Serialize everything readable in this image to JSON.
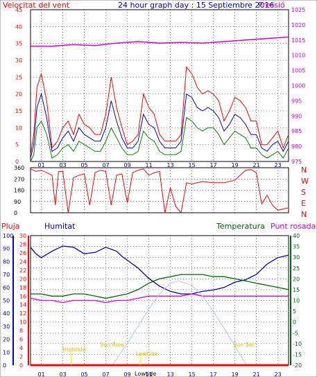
{
  "header": {
    "left": "Velocitat del vent",
    "center": "24 hour graph day : 15 Septiembre 2016",
    "right": "Pressió"
  },
  "mid_header": {
    "pluja": "Pluja",
    "humitat": "Humitat",
    "temperatura": "Temperatura",
    "punt_rosada": "Punt rosada"
  },
  "direction_letters": [
    "N",
    "W",
    "S",
    "E",
    "N"
  ],
  "sun_labels": {
    "sunrise": "Sun Rise",
    "sunset": "Sun Set",
    "hightide": "Hightide",
    "lowtide": "Lowtide",
    "lowtide_bottom": "Lowtide"
  },
  "colors": {
    "wind": "#ff0000",
    "wind_avg": "#0000cc",
    "wind_min": "#008000",
    "pressure": "#cc00cc",
    "direction": "#ff0000",
    "humidity": "#0000aa",
    "temperature": "#006600",
    "dewpoint": "#cc00cc",
    "sun": "#aaccee",
    "tide": "#e8e800",
    "rain": "#ff0000"
  },
  "chart_data": [
    {
      "type": "line",
      "title": "24 hour graph day : 15 Septiembre 2016",
      "x_ticks": [
        "01",
        "03",
        "05",
        "07",
        "09",
        "11",
        "13",
        "15",
        "17",
        "19",
        "21",
        "23"
      ],
      "xlim": [
        0,
        24
      ],
      "left_axis": {
        "label": "Velocitat del vent",
        "ylim": [
          0,
          45
        ],
        "ticks": [
          0,
          5,
          10,
          15,
          20,
          25,
          30,
          35,
          40,
          45
        ]
      },
      "right_axis": {
        "label": "Pressió",
        "ylim": [
          975,
          1025
        ],
        "ticks": [
          975,
          980,
          985,
          990,
          995,
          1000,
          1005,
          1010,
          1015,
          1020,
          1025
        ]
      },
      "series": [
        {
          "key": "gust",
          "axis": "left",
          "x": [
            0,
            0.3,
            0.6,
            1,
            1.5,
            2,
            2.5,
            3,
            3.5,
            4,
            4.5,
            5,
            5.5,
            6,
            6.5,
            7,
            7.5,
            8,
            8.5,
            9,
            9.5,
            10,
            10.5,
            11,
            11.5,
            12,
            12.5,
            13,
            13.5,
            14,
            14.5,
            15,
            15.5,
            16,
            16.5,
            17,
            17.5,
            18,
            18.5,
            19,
            19.5,
            20,
            20.5,
            21,
            21.5,
            22,
            22.5,
            23,
            23.5,
            24
          ],
          "values": [
            2,
            8,
            22,
            26,
            18,
            4,
            6,
            10,
            12,
            8,
            14,
            11,
            10,
            8,
            8,
            14,
            25,
            16,
            10,
            5,
            6,
            8,
            20,
            16,
            14,
            8,
            6,
            6,
            6,
            8,
            28,
            26,
            22,
            20,
            21,
            20,
            18,
            12,
            15,
            19,
            18,
            16,
            12,
            12,
            5,
            5,
            7,
            9,
            4,
            8
          ]
        },
        {
          "key": "avg",
          "axis": "left",
          "x": [
            0,
            0.3,
            0.6,
            1,
            1.5,
            2,
            2.5,
            3,
            3.5,
            4,
            4.5,
            5,
            5.5,
            6,
            6.5,
            7,
            7.5,
            8,
            8.5,
            9,
            9.5,
            10,
            10.5,
            11,
            11.5,
            12,
            12.5,
            13,
            13.5,
            14,
            14.5,
            15,
            15.5,
            16,
            16.5,
            17,
            17.5,
            18,
            18.5,
            19,
            19.5,
            20,
            20.5,
            21,
            21.5,
            22,
            22.5,
            23,
            23.5,
            24
          ],
          "values": [
            1,
            5,
            16,
            20,
            13,
            3,
            4,
            7,
            9,
            6,
            10,
            8,
            7,
            6,
            6,
            10,
            18,
            12,
            7,
            4,
            4,
            6,
            14,
            11,
            10,
            6,
            4,
            4,
            4,
            6,
            20,
            19,
            16,
            15,
            16,
            15,
            13,
            9,
            11,
            14,
            13,
            11,
            8,
            8,
            4,
            3,
            5,
            6,
            3,
            6
          ]
        },
        {
          "key": "min",
          "axis": "left",
          "x": [
            0,
            0.3,
            0.6,
            1,
            1.5,
            2,
            2.5,
            3,
            3.5,
            4,
            4.5,
            5,
            5.5,
            6,
            6.5,
            7,
            7.5,
            8,
            8.5,
            9,
            9.5,
            10,
            10.5,
            11,
            11.5,
            12,
            12.5,
            13,
            13.5,
            14,
            14.5,
            15,
            15.5,
            16,
            16.5,
            17,
            17.5,
            18,
            18.5,
            19,
            19.5,
            20,
            20.5,
            21,
            21.5,
            22,
            22.5,
            23,
            23.5,
            24
          ],
          "values": [
            0,
            2,
            10,
            12,
            8,
            1,
            2,
            4,
            5,
            3,
            6,
            5,
            4,
            3,
            3,
            6,
            10,
            7,
            4,
            2,
            2,
            3,
            9,
            7,
            6,
            3,
            2,
            2,
            2,
            3,
            13,
            12,
            10,
            9,
            10,
            10,
            8,
            5,
            7,
            9,
            8,
            7,
            4,
            4,
            2,
            1,
            2,
            3,
            1,
            4
          ]
        },
        {
          "key": "pressure",
          "axis": "right",
          "x": [
            0,
            2,
            4,
            6,
            8,
            10,
            12,
            14,
            16,
            18,
            20,
            22,
            24
          ],
          "values": [
            1013,
            1013,
            1013.5,
            1013.2,
            1014,
            1014.5,
            1014,
            1014.2,
            1014,
            1014.5,
            1015,
            1015.5,
            1016
          ]
        }
      ]
    },
    {
      "type": "line",
      "title": "",
      "x_ticks": [
        "01",
        "03",
        "05",
        "07",
        "09",
        "11",
        "13",
        "15",
        "17",
        "19",
        "21",
        "23"
      ],
      "xlim": [
        0,
        24
      ],
      "ylim": [
        0,
        360
      ],
      "ticks": [
        0,
        90,
        180,
        270,
        360
      ],
      "series": [
        {
          "key": "direction",
          "x": [
            0,
            0.5,
            1,
            1.5,
            2,
            2.3,
            2.6,
            3,
            3.5,
            4,
            4.5,
            5,
            5.5,
            6,
            6.5,
            7,
            7.5,
            8,
            8.5,
            9,
            9.5,
            10,
            10.5,
            11,
            11.5,
            12,
            12.5,
            13,
            13.5,
            14,
            14.5,
            15,
            16,
            17,
            18,
            19,
            20,
            20.5,
            21,
            21.5,
            22,
            22.5,
            23,
            23.5,
            24
          ],
          "values": [
            350,
            330,
            340,
            320,
            300,
            60,
            330,
            330,
            0,
            280,
            300,
            310,
            60,
            320,
            340,
            330,
            60,
            300,
            310,
            80,
            320,
            340,
            350,
            300,
            320,
            330,
            0,
            200,
            50,
            0,
            240,
            230,
            250,
            240,
            240,
            260,
            340,
            345,
            320,
            70,
            140,
            60,
            20,
            30,
            40
          ]
        }
      ]
    },
    {
      "type": "line",
      "title": "",
      "x_ticks": [
        "01",
        "03",
        "05",
        "07",
        "09",
        "11",
        "13",
        "15",
        "17",
        "19",
        "21",
        "23"
      ],
      "xlim": [
        0,
        24
      ],
      "axes": {
        "humidity": {
          "label": "Humitat",
          "ylim": [
            0,
            100
          ],
          "ticks": [
            0,
            10,
            20,
            30,
            40,
            50,
            60,
            70,
            80,
            90,
            100
          ]
        },
        "rain": {
          "label": "Pluja",
          "ylim": [
            0,
            30
          ],
          "ticks": [
            0,
            2,
            4,
            6,
            8,
            10,
            12,
            14,
            16,
            18,
            20,
            22,
            24,
            26,
            28,
            30
          ]
        },
        "temperature": {
          "label": "Temperatura",
          "ylim": [
            -20,
            40
          ],
          "ticks": [
            -20,
            -15,
            -10,
            -5,
            0,
            5,
            10,
            15,
            20,
            25,
            30,
            35,
            40
          ]
        }
      },
      "series": [
        {
          "key": "humidity",
          "axis": "humidity",
          "x": [
            0,
            0.5,
            1,
            2,
            3,
            4,
            5,
            6,
            7,
            8,
            8.5,
            9,
            10,
            11,
            12,
            13,
            13.5,
            14,
            15,
            16,
            17,
            18,
            19,
            20,
            21,
            22,
            23,
            24
          ],
          "values": [
            91,
            86,
            83,
            88,
            92,
            91,
            86,
            87,
            91,
            88,
            84,
            81,
            75,
            67,
            61,
            57,
            56,
            55,
            55,
            57,
            58,
            60,
            64,
            66,
            70,
            78,
            83,
            85
          ]
        },
        {
          "key": "temperature",
          "axis": "temperature",
          "x": [
            0,
            1,
            2,
            3,
            4,
            5,
            6,
            7,
            8,
            9,
            10,
            11,
            12,
            13,
            14,
            15,
            16,
            17,
            18,
            19,
            20,
            21,
            22,
            23,
            24
          ],
          "values": [
            13,
            13,
            12,
            12,
            13,
            13,
            12,
            11,
            12,
            13,
            15,
            18,
            20,
            21,
            22,
            22,
            22,
            21,
            21,
            20,
            19,
            18,
            17,
            16,
            15
          ]
        },
        {
          "key": "dewpoint",
          "axis": "temperature",
          "x": [
            0,
            1,
            2,
            3,
            4,
            5,
            6,
            7,
            8,
            9,
            10,
            11,
            12,
            13,
            14,
            15,
            16,
            17,
            18,
            19,
            20,
            21,
            22,
            23,
            24
          ],
          "values": [
            11,
            10,
            10,
            9,
            10,
            10,
            10,
            9,
            10,
            10,
            11,
            12,
            12,
            12,
            12,
            13,
            12,
            12,
            12,
            12,
            12,
            12,
            12,
            12,
            12
          ]
        },
        {
          "key": "sun",
          "axis": "temperature",
          "x": [
            7.6,
            9,
            10,
            11,
            12,
            13,
            13.8,
            15,
            16,
            17,
            18,
            19,
            20.1
          ],
          "values": [
            -20,
            -10,
            -2,
            6,
            13,
            18,
            19,
            17,
            12,
            5,
            -3,
            -11,
            -20
          ]
        },
        {
          "key": "rain",
          "axis": "rain",
          "x": [
            0,
            24
          ],
          "values": [
            0,
            0
          ]
        }
      ]
    }
  ]
}
